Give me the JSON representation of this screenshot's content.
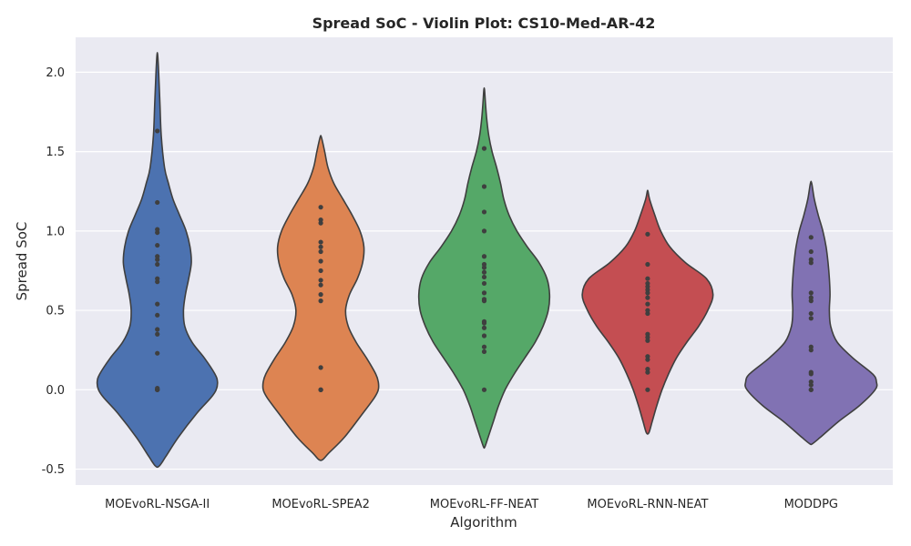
{
  "chart_data": {
    "type": "violin",
    "title": "Spread SoC - Violin Plot: CS10-Med-AR-42",
    "xlabel": "Algorithm",
    "ylabel": "Spread SoC",
    "ylim": [
      -0.6,
      2.22
    ],
    "yticks": [
      "-0.5",
      "0.0",
      "0.5",
      "1.0",
      "1.5",
      "2.0"
    ],
    "ytick_values": [
      -0.5,
      0.0,
      0.5,
      1.0,
      1.5,
      2.0
    ],
    "grid": true,
    "categories": [
      "MOEvoRL-NSGA-II",
      "MOEvoRL-SPEA2",
      "MOEvoRL-FF-NEAT",
      "MOEvoRL-RNN-NEAT",
      "MODDPG"
    ],
    "colors": [
      "#4c72b0",
      "#dd8452",
      "#55a868",
      "#c44e52",
      "#8172b3"
    ],
    "series": [
      {
        "name": "MOEvoRL-NSGA-II",
        "points": [
          0.0,
          0.0,
          0.0,
          0.01,
          0.23,
          0.35,
          0.38,
          0.47,
          0.54,
          0.68,
          0.7,
          0.79,
          0.82,
          0.84,
          0.91,
          0.99,
          1.01,
          1.18,
          1.63
        ],
        "violin_range": [
          -0.48,
          2.11
        ],
        "profile": [
          [
            -0.48,
            0.03
          ],
          [
            -0.42,
            0.13
          ],
          [
            -0.3,
            0.32
          ],
          [
            -0.15,
            0.6
          ],
          [
            -0.05,
            0.82
          ],
          [
            0.0,
            0.9
          ],
          [
            0.05,
            0.92
          ],
          [
            0.1,
            0.88
          ],
          [
            0.2,
            0.72
          ],
          [
            0.3,
            0.53
          ],
          [
            0.4,
            0.42
          ],
          [
            0.5,
            0.4
          ],
          [
            0.6,
            0.43
          ],
          [
            0.7,
            0.48
          ],
          [
            0.8,
            0.52
          ],
          [
            0.9,
            0.5
          ],
          [
            1.0,
            0.44
          ],
          [
            1.1,
            0.34
          ],
          [
            1.2,
            0.24
          ],
          [
            1.3,
            0.17
          ],
          [
            1.4,
            0.11
          ],
          [
            1.6,
            0.06
          ],
          [
            1.8,
            0.04
          ],
          [
            2.0,
            0.02
          ],
          [
            2.11,
            0.005
          ]
        ]
      },
      {
        "name": "MOEvoRL-SPEA2",
        "points": [
          0.0,
          0.0,
          0.0,
          0.14,
          0.56,
          0.6,
          0.66,
          0.69,
          0.75,
          0.81,
          0.87,
          0.9,
          0.93,
          1.05,
          1.07,
          1.15
        ],
        "violin_range": [
          -0.44,
          1.59
        ],
        "profile": [
          [
            -0.44,
            0.03
          ],
          [
            -0.4,
            0.12
          ],
          [
            -0.3,
            0.36
          ],
          [
            -0.15,
            0.64
          ],
          [
            -0.05,
            0.82
          ],
          [
            0.0,
            0.88
          ],
          [
            0.05,
            0.88
          ],
          [
            0.1,
            0.84
          ],
          [
            0.2,
            0.7
          ],
          [
            0.3,
            0.54
          ],
          [
            0.4,
            0.42
          ],
          [
            0.5,
            0.38
          ],
          [
            0.6,
            0.44
          ],
          [
            0.7,
            0.56
          ],
          [
            0.8,
            0.64
          ],
          [
            0.9,
            0.66
          ],
          [
            1.0,
            0.6
          ],
          [
            1.1,
            0.48
          ],
          [
            1.2,
            0.34
          ],
          [
            1.3,
            0.2
          ],
          [
            1.4,
            0.11
          ],
          [
            1.5,
            0.06
          ],
          [
            1.59,
            0.01
          ]
        ]
      },
      {
        "name": "MOEvoRL-FF-NEAT",
        "points": [
          0.0,
          0.24,
          0.27,
          0.34,
          0.39,
          0.42,
          0.43,
          0.56,
          0.57,
          0.61,
          0.67,
          0.71,
          0.74,
          0.77,
          0.79,
          0.84,
          1.0,
          1.12,
          1.28,
          1.52
        ],
        "violin_range": [
          -0.36,
          1.89
        ],
        "profile": [
          [
            -0.36,
            0.01
          ],
          [
            -0.3,
            0.06
          ],
          [
            -0.2,
            0.14
          ],
          [
            -0.1,
            0.22
          ],
          [
            0.0,
            0.32
          ],
          [
            0.1,
            0.46
          ],
          [
            0.2,
            0.62
          ],
          [
            0.3,
            0.78
          ],
          [
            0.4,
            0.9
          ],
          [
            0.5,
            0.98
          ],
          [
            0.6,
            1.0
          ],
          [
            0.7,
            0.96
          ],
          [
            0.8,
            0.84
          ],
          [
            0.9,
            0.66
          ],
          [
            1.0,
            0.5
          ],
          [
            1.1,
            0.38
          ],
          [
            1.2,
            0.3
          ],
          [
            1.3,
            0.25
          ],
          [
            1.4,
            0.19
          ],
          [
            1.5,
            0.12
          ],
          [
            1.6,
            0.07
          ],
          [
            1.7,
            0.04
          ],
          [
            1.8,
            0.02
          ],
          [
            1.89,
            0.005
          ]
        ]
      },
      {
        "name": "MOEvoRL-RNN-NEAT",
        "points": [
          0.0,
          0.11,
          0.13,
          0.19,
          0.21,
          0.31,
          0.33,
          0.35,
          0.48,
          0.5,
          0.54,
          0.58,
          0.61,
          0.63,
          0.65,
          0.67,
          0.7,
          0.79,
          0.98
        ],
        "violin_range": [
          -0.27,
          1.25
        ],
        "profile": [
          [
            -0.27,
            0.02
          ],
          [
            -0.2,
            0.07
          ],
          [
            -0.1,
            0.14
          ],
          [
            0.0,
            0.22
          ],
          [
            0.1,
            0.32
          ],
          [
            0.2,
            0.44
          ],
          [
            0.3,
            0.6
          ],
          [
            0.4,
            0.78
          ],
          [
            0.5,
            0.92
          ],
          [
            0.6,
            1.0
          ],
          [
            0.7,
            0.9
          ],
          [
            0.8,
            0.58
          ],
          [
            0.9,
            0.34
          ],
          [
            1.0,
            0.2
          ],
          [
            1.1,
            0.11
          ],
          [
            1.2,
            0.03
          ],
          [
            1.25,
            0.005
          ]
        ]
      },
      {
        "name": "MODDPG",
        "points": [
          0.0,
          0.0,
          0.03,
          0.05,
          0.1,
          0.11,
          0.25,
          0.27,
          0.45,
          0.48,
          0.56,
          0.58,
          0.61,
          0.8,
          0.82,
          0.87,
          0.96
        ],
        "violin_range": [
          -0.34,
          1.3
        ],
        "profile": [
          [
            -0.34,
            0.02
          ],
          [
            -0.3,
            0.14
          ],
          [
            -0.2,
            0.42
          ],
          [
            -0.1,
            0.74
          ],
          [
            0.0,
            0.98
          ],
          [
            0.05,
            1.0
          ],
          [
            0.1,
            0.94
          ],
          [
            0.2,
            0.64
          ],
          [
            0.3,
            0.4
          ],
          [
            0.4,
            0.3
          ],
          [
            0.5,
            0.28
          ],
          [
            0.6,
            0.29
          ],
          [
            0.7,
            0.28
          ],
          [
            0.8,
            0.26
          ],
          [
            0.9,
            0.23
          ],
          [
            1.0,
            0.18
          ],
          [
            1.1,
            0.11
          ],
          [
            1.2,
            0.05
          ],
          [
            1.3,
            0.01
          ]
        ]
      }
    ]
  }
}
